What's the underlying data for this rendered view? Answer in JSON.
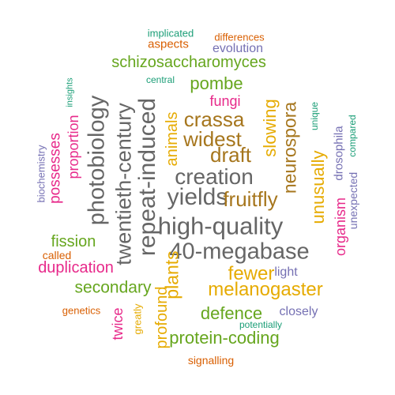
{
  "palette": {
    "green": "#1B9E77",
    "orange": "#D95F02",
    "purple": "#7570B3",
    "magenta": "#E7298A",
    "lime": "#66A61E",
    "gold": "#E6AB02",
    "brown": "#A6761D",
    "gray": "#666666"
  },
  "words": [
    {
      "text": "implicated",
      "color": "#1B9E77"
    },
    {
      "text": "differences",
      "color": "#D95F02"
    },
    {
      "text": "aspects",
      "color": "#D95F02"
    },
    {
      "text": "evolution",
      "color": "#7570B3"
    },
    {
      "text": "schizosaccharomyces",
      "color": "#66A61E"
    },
    {
      "text": "central",
      "color": "#1B9E77"
    },
    {
      "text": "pombe",
      "color": "#66A61E"
    },
    {
      "text": "insights",
      "color": "#1B9E77"
    },
    {
      "text": "fungi",
      "color": "#E7298A"
    },
    {
      "text": "crassa",
      "color": "#A6761D"
    },
    {
      "text": "widest",
      "color": "#A6761D"
    },
    {
      "text": "draft",
      "color": "#A6761D"
    },
    {
      "text": "creation",
      "color": "#666666"
    },
    {
      "text": "yields",
      "color": "#666666"
    },
    {
      "text": "fruitfly",
      "color": "#A6761D"
    },
    {
      "text": "high-quality",
      "color": "#666666"
    },
    {
      "text": "40-megabase",
      "color": "#666666"
    },
    {
      "text": "photobiology",
      "color": "#666666"
    },
    {
      "text": "twentieth-century",
      "color": "#666666"
    },
    {
      "text": "repeat-induced",
      "color": "#666666"
    },
    {
      "text": "plants",
      "color": "#E6AB02"
    },
    {
      "text": "animals",
      "color": "#E6AB02"
    },
    {
      "text": "slowing",
      "color": "#E6AB02"
    },
    {
      "text": "neurospora",
      "color": "#A6761D"
    },
    {
      "text": "unusually",
      "color": "#E6AB02"
    },
    {
      "text": "unique",
      "color": "#1B9E77"
    },
    {
      "text": "drosophila",
      "color": "#7570B3"
    },
    {
      "text": "compared",
      "color": "#1B9E77"
    },
    {
      "text": "organism",
      "color": "#E7298A"
    },
    {
      "text": "unexpected",
      "color": "#7570B3"
    },
    {
      "text": "biochemistry",
      "color": "#7570B3"
    },
    {
      "text": "possesses",
      "color": "#E7298A"
    },
    {
      "text": "proportion",
      "color": "#E7298A"
    },
    {
      "text": "fission",
      "color": "#66A61E"
    },
    {
      "text": "called",
      "color": "#D95F02"
    },
    {
      "text": "duplication",
      "color": "#E7298A"
    },
    {
      "text": "fewer",
      "color": "#E6AB02"
    },
    {
      "text": "light",
      "color": "#7570B3"
    },
    {
      "text": "secondary",
      "color": "#66A61E"
    },
    {
      "text": "melanogaster",
      "color": "#E6AB02"
    },
    {
      "text": "genetics",
      "color": "#D95F02"
    },
    {
      "text": "greatly",
      "color": "#E6AB02"
    },
    {
      "text": "defence",
      "color": "#66A61E"
    },
    {
      "text": "closely",
      "color": "#7570B3"
    },
    {
      "text": "potentially",
      "color": "#1B9E77"
    },
    {
      "text": "twice",
      "color": "#E7298A"
    },
    {
      "text": "profound",
      "color": "#E6AB02"
    },
    {
      "text": "protein-coding",
      "color": "#66A61E"
    },
    {
      "text": "signalling",
      "color": "#D95F02"
    }
  ]
}
